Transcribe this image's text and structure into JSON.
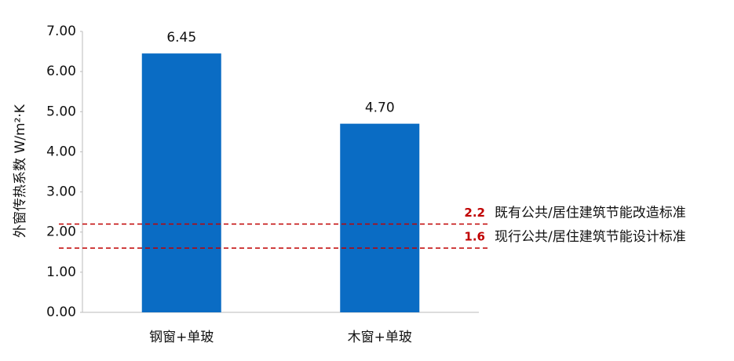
{
  "chart_data": {
    "type": "bar",
    "y_label": "外窗传热系数 W/m²·K",
    "categories": [
      "钢窗+单玻",
      "木窗+单玻"
    ],
    "values": [
      6.45,
      4.7
    ],
    "value_labels": [
      "6.45",
      "4.70"
    ],
    "color": "#0a6cc4",
    "ylim": [
      0,
      7
    ],
    "yticks": [
      {
        "value": 0,
        "label": "0.00"
      },
      {
        "value": 1,
        "label": "1.00"
      },
      {
        "value": 2,
        "label": "2.00"
      },
      {
        "value": 3,
        "label": "3.00"
      },
      {
        "value": 4,
        "label": "4.00"
      },
      {
        "value": 5,
        "label": "5.00"
      },
      {
        "value": 6,
        "label": "6.00"
      },
      {
        "value": 7,
        "label": "7.00"
      }
    ],
    "grid": false,
    "reference_lines": [
      {
        "value": 2.2,
        "text": "既有公共/居住建筑节能改造标准",
        "color": "#c00000"
      },
      {
        "value": 1.6,
        "text": "现行公共/居住建筑节能设计标准",
        "color": "#c00000"
      }
    ]
  }
}
